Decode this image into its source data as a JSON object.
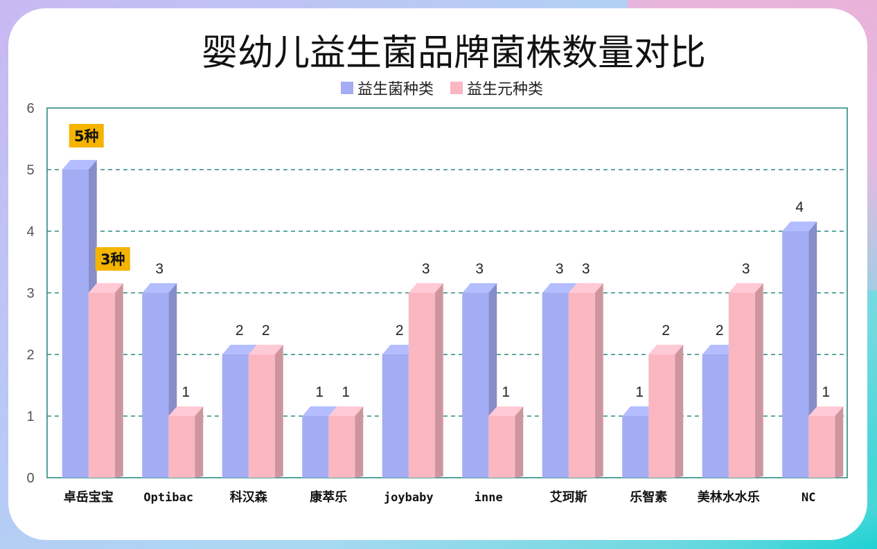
{
  "chart_data": {
    "type": "bar",
    "title": "婴幼儿益生菌品牌菌株数量对比",
    "categories": [
      "卓岳宝宝",
      "Optibac",
      "科汉森",
      "康萃乐",
      "joybaby",
      "inne",
      "艾珂斯",
      "乐智素",
      "美林水水乐",
      "NC"
    ],
    "series": [
      {
        "name": "益生菌种类",
        "values": [
          5,
          3,
          2,
          1,
          2,
          3,
          3,
          1,
          2,
          4
        ],
        "color": "#a4acf4"
      },
      {
        "name": "益生元种类",
        "values": [
          3,
          1,
          2,
          1,
          3,
          1,
          3,
          2,
          3,
          1
        ],
        "color": "#fab7c2"
      }
    ],
    "data_labels": {
      "益生菌种类": [
        "",
        "3",
        "2",
        "1",
        "2",
        "3",
        "3",
        "1",
        "2",
        "4"
      ],
      "益生元种类": [
        "",
        "1",
        "2",
        "1",
        "3",
        "1",
        "3",
        "2",
        "3",
        "1"
      ]
    },
    "callouts": [
      {
        "series": 0,
        "index": 0,
        "text": "5种"
      },
      {
        "series": 1,
        "index": 0,
        "text": "3种"
      }
    ],
    "ylim": [
      0,
      6
    ],
    "yticks": [
      0,
      1,
      2,
      3,
      4,
      5,
      6
    ],
    "grid": true,
    "legend_position": "top-center",
    "colors": {
      "callout_bg": "#f4b400",
      "grid": "#2a8a82",
      "axis": "#2a8a82"
    }
  }
}
